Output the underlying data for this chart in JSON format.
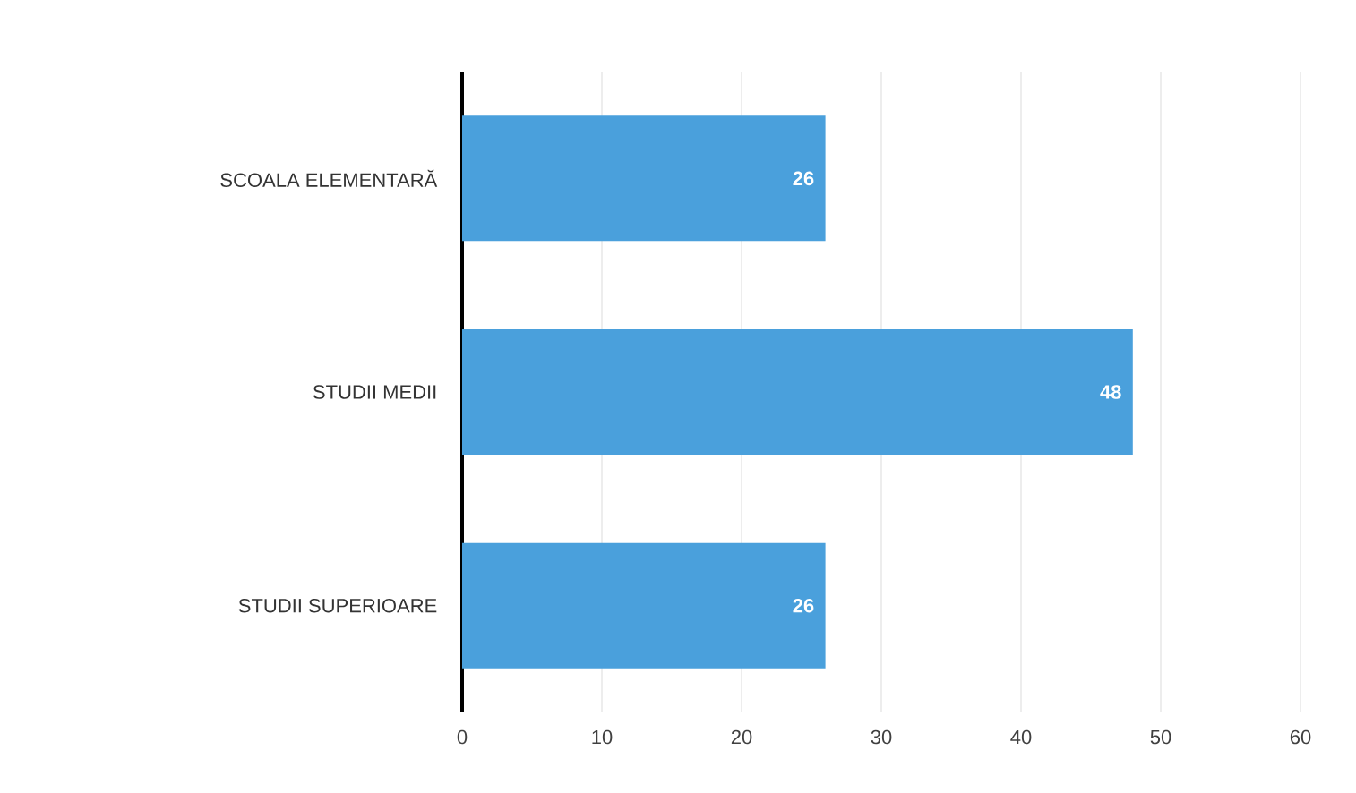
{
  "chart_data": {
    "type": "bar",
    "orientation": "horizontal",
    "categories": [
      "SCOALA ELEMENTARĂ",
      "STUDII MEDII",
      "STUDII SUPERIOARE"
    ],
    "values": [
      26,
      48,
      26
    ],
    "color": "#4aa0dc",
    "xlim": [
      0,
      60
    ],
    "xticks": [
      0,
      10,
      20,
      30,
      40,
      50,
      60
    ],
    "grid": "x",
    "data_labels": true
  }
}
